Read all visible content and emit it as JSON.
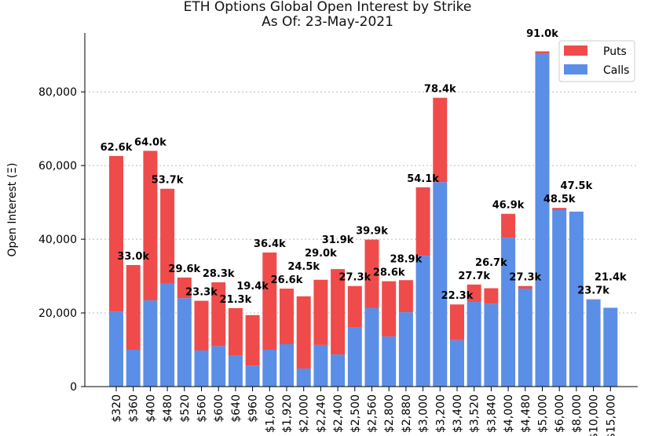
{
  "chart_data": {
    "type": "bar",
    "stacked": true,
    "title": "ETH Options Global Open Interest by Strike",
    "subtitle": "As Of: 23-May-2021",
    "xlabel": "",
    "ylabel": "Open Interest (Ξ)",
    "ylim": [
      0,
      96000
    ],
    "yticks": [
      0,
      20000,
      40000,
      60000,
      80000
    ],
    "ytick_labels": [
      "0",
      "20,000",
      "40,000",
      "60,000",
      "80,000"
    ],
    "grid": "horizontal dotted",
    "legend": "top-right",
    "categories": [
      "$320",
      "$360",
      "$400",
      "$480",
      "$520",
      "$560",
      "$600",
      "$640",
      "$960",
      "$1,600",
      "$1,920",
      "$2,000",
      "$2,240",
      "$2,400",
      "$2,500",
      "$2,560",
      "$2,800",
      "$2,880",
      "$3,000",
      "$3,200",
      "$3,400",
      "$3,520",
      "$3,840",
      "$4,000",
      "$4,480",
      "$5,000",
      "$6,000",
      "$8,000",
      "$10,000",
      "$15,000"
    ],
    "series": [
      {
        "name": "Calls",
        "color": "#5b8ee6",
        "values": [
          20400,
          10000,
          23400,
          28000,
          24000,
          9800,
          11000,
          8500,
          5700,
          10000,
          11500,
          4900,
          11300,
          8700,
          16000,
          21300,
          13600,
          20200,
          35500,
          55500,
          12600,
          23000,
          22500,
          40400,
          26600,
          90300,
          48000,
          47500,
          23600,
          21400
        ]
      },
      {
        "name": "Puts",
        "color": "#ef4b4b",
        "values": [
          42200,
          23000,
          40600,
          25700,
          5600,
          13500,
          17300,
          12800,
          13700,
          26400,
          15100,
          19600,
          17700,
          23200,
          11300,
          18600,
          15000,
          8700,
          18600,
          22900,
          9700,
          4700,
          4200,
          6500,
          700,
          700,
          500,
          0,
          100,
          0
        ]
      }
    ],
    "total_labels": [
      "62.6k",
      "33.0k",
      "64.0k",
      "53.7k",
      "29.6k",
      "23.3k",
      "28.3k",
      "21.3k",
      "19.4k",
      "36.4k",
      "26.6k",
      "24.5k",
      "29.0k",
      "31.9k",
      "27.3k",
      "39.9k",
      "28.6k",
      "28.9k",
      "54.1k",
      "78.4k",
      "22.3k",
      "27.7k",
      "26.7k",
      "46.9k",
      "27.3k",
      "91.0k",
      "48.5k",
      "47.5k",
      "23.7k",
      "21.4k"
    ]
  }
}
